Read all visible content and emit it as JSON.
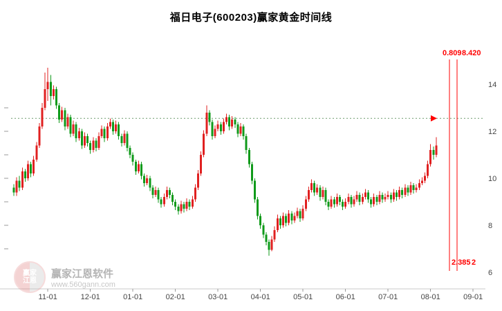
{
  "title": "福日电子(600203)赢家黄金时间线",
  "watermark": {
    "logo_top": "赢家",
    "logo_bottom": "江恩",
    "name": "赢家江恩软件",
    "url": "www.560gann.com"
  },
  "chart_data": {
    "type": "candlestick",
    "title": "福日电子(600203)赢家黄金时间线",
    "symbol_name": "福日电子",
    "symbol_code": "600203",
    "tool_name": "赢家黄金时间线",
    "x_ticks": [
      "11-01",
      "12-01",
      "01-01",
      "02-01",
      "03-01",
      "04-01",
      "05-01",
      "06-01",
      "07-01",
      "08-01",
      "09-01"
    ],
    "y_ticks": [
      14,
      12,
      10,
      8,
      6
    ],
    "y_minor_ticks": [
      13,
      12,
      11,
      10,
      9,
      8,
      7
    ],
    "ylim": [
      6,
      15
    ],
    "up_color": "#e02020",
    "down_color": "#0f9a1a",
    "axis_color": "#c8c8c8",
    "tick_label_color": "#444444",
    "golden_lines": {
      "color": "#ff0000",
      "top_labels": [
        "0.809",
        "8.420"
      ],
      "bottom_labels": [
        "2.385",
        "2"
      ]
    },
    "reference_line": {
      "price": 12.55,
      "style": "dashed",
      "color": "#6a9a6a",
      "marker": "red-right-arrow"
    },
    "candles_format": [
      "open",
      "high",
      "low",
      "close"
    ],
    "candles": [
      [
        9.6,
        9.75,
        9.25,
        9.4
      ],
      [
        9.4,
        10.05,
        9.25,
        9.9
      ],
      [
        9.9,
        10.1,
        9.45,
        9.6
      ],
      [
        9.6,
        10.45,
        9.5,
        10.3
      ],
      [
        10.3,
        10.4,
        9.85,
        10.0
      ],
      [
        10.0,
        10.75,
        9.9,
        10.6
      ],
      [
        10.6,
        10.7,
        10.05,
        10.2
      ],
      [
        10.2,
        10.95,
        10.1,
        10.8
      ],
      [
        10.8,
        11.55,
        10.7,
        11.4
      ],
      [
        11.4,
        12.35,
        11.3,
        12.2
      ],
      [
        12.2,
        13.2,
        12.1,
        13.0
      ],
      [
        13.0,
        14.5,
        12.9,
        13.8
      ],
      [
        13.8,
        14.7,
        13.3,
        14.1
      ],
      [
        14.1,
        14.4,
        13.1,
        13.5
      ],
      [
        13.5,
        13.95,
        13.35,
        13.8
      ],
      [
        13.8,
        13.9,
        12.95,
        13.1
      ],
      [
        13.1,
        13.2,
        12.35,
        12.5
      ],
      [
        12.5,
        13.05,
        12.4,
        12.9
      ],
      [
        12.9,
        13.0,
        12.05,
        12.2
      ],
      [
        12.2,
        12.75,
        12.1,
        12.6
      ],
      [
        12.6,
        12.7,
        11.75,
        11.9
      ],
      [
        11.9,
        12.45,
        11.8,
        12.3
      ],
      [
        12.3,
        12.4,
        11.55,
        11.7
      ],
      [
        11.7,
        12.15,
        11.6,
        12.0
      ],
      [
        12.0,
        12.1,
        11.25,
        11.4
      ],
      [
        11.4,
        11.95,
        11.3,
        11.8
      ],
      [
        11.8,
        11.9,
        11.35,
        11.5
      ],
      [
        11.5,
        11.6,
        11.05,
        11.2
      ],
      [
        11.2,
        11.75,
        11.1,
        11.6
      ],
      [
        11.6,
        11.7,
        11.15,
        11.3
      ],
      [
        11.3,
        11.95,
        11.2,
        11.8
      ],
      [
        11.8,
        12.25,
        11.7,
        12.1
      ],
      [
        12.1,
        12.2,
        11.55,
        11.7
      ],
      [
        11.7,
        12.35,
        11.6,
        12.2
      ],
      [
        12.2,
        12.55,
        12.1,
        12.4
      ],
      [
        12.4,
        12.5,
        11.85,
        12.0
      ],
      [
        12.0,
        12.45,
        11.9,
        12.3
      ],
      [
        12.3,
        12.4,
        11.65,
        11.8
      ],
      [
        11.8,
        11.9,
        11.35,
        11.5
      ],
      [
        11.5,
        12.05,
        11.4,
        11.9
      ],
      [
        11.9,
        12.0,
        11.15,
        11.3
      ],
      [
        11.3,
        11.4,
        10.85,
        11.0
      ],
      [
        11.0,
        11.1,
        10.55,
        10.7
      ],
      [
        10.7,
        10.8,
        10.15,
        10.3
      ],
      [
        10.3,
        10.75,
        10.2,
        10.6
      ],
      [
        10.6,
        10.7,
        9.95,
        10.1
      ],
      [
        10.1,
        10.2,
        9.65,
        9.8
      ],
      [
        9.8,
        10.15,
        9.7,
        10.0
      ],
      [
        10.0,
        10.1,
        9.45,
        9.6
      ],
      [
        9.6,
        9.7,
        9.15,
        9.3
      ],
      [
        9.3,
        9.65,
        9.2,
        9.5
      ],
      [
        9.5,
        9.6,
        8.95,
        9.1
      ],
      [
        9.1,
        9.2,
        8.75,
        8.9
      ],
      [
        8.9,
        9.35,
        8.8,
        9.2
      ],
      [
        9.2,
        9.65,
        9.1,
        9.5
      ],
      [
        9.5,
        9.6,
        9.15,
        9.3
      ],
      [
        9.3,
        9.4,
        8.85,
        9.0
      ],
      [
        9.0,
        9.1,
        8.65,
        8.8
      ],
      [
        8.8,
        8.9,
        8.45,
        8.6
      ],
      [
        8.6,
        9.05,
        8.5,
        8.9
      ],
      [
        8.9,
        9.0,
        8.55,
        8.7
      ],
      [
        8.7,
        9.15,
        8.6,
        9.0
      ],
      [
        9.0,
        9.1,
        8.65,
        8.8
      ],
      [
        8.8,
        9.25,
        8.7,
        9.1
      ],
      [
        9.1,
        9.75,
        9.0,
        9.6
      ],
      [
        9.6,
        10.35,
        9.5,
        10.2
      ],
      [
        10.2,
        11.15,
        10.1,
        11.0
      ],
      [
        11.0,
        12.05,
        10.9,
        11.9
      ],
      [
        11.9,
        13.1,
        11.8,
        12.8
      ],
      [
        12.8,
        12.9,
        12.25,
        12.4
      ],
      [
        12.4,
        12.5,
        11.65,
        11.8
      ],
      [
        11.8,
        12.25,
        11.7,
        12.1
      ],
      [
        12.1,
        12.45,
        12.0,
        12.3
      ],
      [
        12.3,
        12.4,
        11.85,
        12.0
      ],
      [
        12.0,
        12.55,
        11.9,
        12.4
      ],
      [
        12.4,
        12.75,
        12.3,
        12.6
      ],
      [
        12.6,
        12.7,
        12.05,
        12.2
      ],
      [
        12.2,
        12.65,
        12.1,
        12.5
      ],
      [
        12.5,
        12.6,
        12.15,
        12.3
      ],
      [
        12.3,
        12.4,
        11.75,
        11.9
      ],
      [
        11.9,
        12.35,
        11.8,
        12.2
      ],
      [
        12.2,
        12.3,
        11.65,
        11.8
      ],
      [
        11.8,
        11.9,
        11.05,
        11.2
      ],
      [
        11.2,
        11.3,
        10.45,
        10.6
      ],
      [
        10.6,
        10.7,
        9.75,
        9.9
      ],
      [
        9.9,
        10.0,
        8.95,
        9.1
      ],
      [
        9.1,
        9.2,
        8.25,
        8.4
      ],
      [
        8.4,
        8.5,
        7.85,
        8.0
      ],
      [
        8.0,
        8.1,
        7.45,
        7.6
      ],
      [
        7.6,
        7.7,
        7.15,
        7.3
      ],
      [
        7.3,
        7.4,
        6.7,
        6.95
      ],
      [
        6.95,
        7.55,
        6.9,
        7.4
      ],
      [
        7.4,
        7.95,
        7.3,
        7.8
      ],
      [
        7.8,
        8.45,
        7.7,
        8.3
      ],
      [
        8.3,
        8.4,
        7.85,
        8.0
      ],
      [
        8.0,
        8.55,
        7.9,
        8.4
      ],
      [
        8.4,
        8.5,
        7.95,
        8.1
      ],
      [
        8.1,
        8.65,
        8.0,
        8.5
      ],
      [
        8.5,
        8.6,
        8.05,
        8.2
      ],
      [
        8.2,
        8.55,
        8.1,
        8.4
      ],
      [
        8.4,
        8.75,
        8.3,
        8.6
      ],
      [
        8.6,
        8.7,
        8.15,
        8.3
      ],
      [
        8.3,
        8.85,
        8.2,
        8.7
      ],
      [
        8.7,
        9.25,
        8.6,
        9.1
      ],
      [
        9.1,
        9.65,
        9.0,
        9.5
      ],
      [
        9.5,
        9.95,
        9.4,
        9.8
      ],
      [
        9.8,
        9.9,
        9.25,
        9.4
      ],
      [
        9.4,
        9.75,
        9.3,
        9.6
      ],
      [
        9.6,
        9.7,
        9.05,
        9.2
      ],
      [
        9.2,
        9.65,
        9.1,
        9.5
      ],
      [
        9.5,
        9.6,
        8.85,
        9.0
      ],
      [
        9.0,
        9.1,
        8.65,
        8.8
      ],
      [
        8.8,
        9.25,
        8.7,
        9.1
      ],
      [
        9.1,
        9.2,
        8.75,
        8.9
      ],
      [
        8.9,
        9.35,
        8.8,
        9.2
      ],
      [
        9.2,
        9.3,
        8.85,
        9.0
      ],
      [
        9.0,
        9.1,
        8.65,
        8.8
      ],
      [
        8.8,
        9.15,
        8.7,
        9.0
      ],
      [
        9.0,
        9.35,
        8.9,
        9.2
      ],
      [
        9.2,
        9.3,
        8.75,
        8.9
      ],
      [
        8.9,
        9.25,
        8.8,
        9.1
      ],
      [
        9.1,
        9.45,
        9.0,
        9.3
      ],
      [
        9.3,
        9.4,
        8.85,
        9.0
      ],
      [
        9.0,
        9.35,
        8.9,
        9.2
      ],
      [
        9.2,
        9.55,
        9.1,
        9.4
      ],
      [
        9.4,
        9.5,
        8.95,
        9.1
      ],
      [
        9.1,
        9.2,
        8.75,
        8.9
      ],
      [
        8.9,
        9.35,
        8.8,
        9.2
      ],
      [
        9.2,
        9.3,
        8.85,
        9.0
      ],
      [
        9.0,
        9.45,
        8.9,
        9.3
      ],
      [
        9.3,
        9.4,
        8.95,
        9.1
      ],
      [
        9.1,
        9.35,
        9.0,
        9.2
      ],
      [
        9.2,
        9.45,
        9.1,
        9.3
      ],
      [
        9.3,
        9.4,
        8.95,
        9.1
      ],
      [
        9.1,
        9.55,
        9.0,
        9.4
      ],
      [
        9.4,
        9.5,
        9.05,
        9.2
      ],
      [
        9.2,
        9.65,
        9.1,
        9.5
      ],
      [
        9.5,
        9.6,
        9.15,
        9.3
      ],
      [
        9.3,
        9.75,
        9.2,
        9.6
      ],
      [
        9.6,
        9.7,
        9.25,
        9.4
      ],
      [
        9.4,
        9.85,
        9.3,
        9.7
      ],
      [
        9.7,
        9.8,
        9.35,
        9.5
      ],
      [
        9.5,
        9.75,
        9.4,
        9.6
      ],
      [
        9.6,
        9.95,
        9.5,
        9.8
      ],
      [
        9.8,
        10.05,
        9.7,
        9.9
      ],
      [
        9.9,
        10.25,
        9.8,
        10.1
      ],
      [
        10.1,
        10.75,
        10.0,
        10.6
      ],
      [
        10.6,
        11.45,
        10.5,
        11.2
      ],
      [
        11.2,
        11.35,
        10.8,
        11.0
      ],
      [
        11.0,
        11.75,
        10.9,
        11.4
      ]
    ]
  }
}
